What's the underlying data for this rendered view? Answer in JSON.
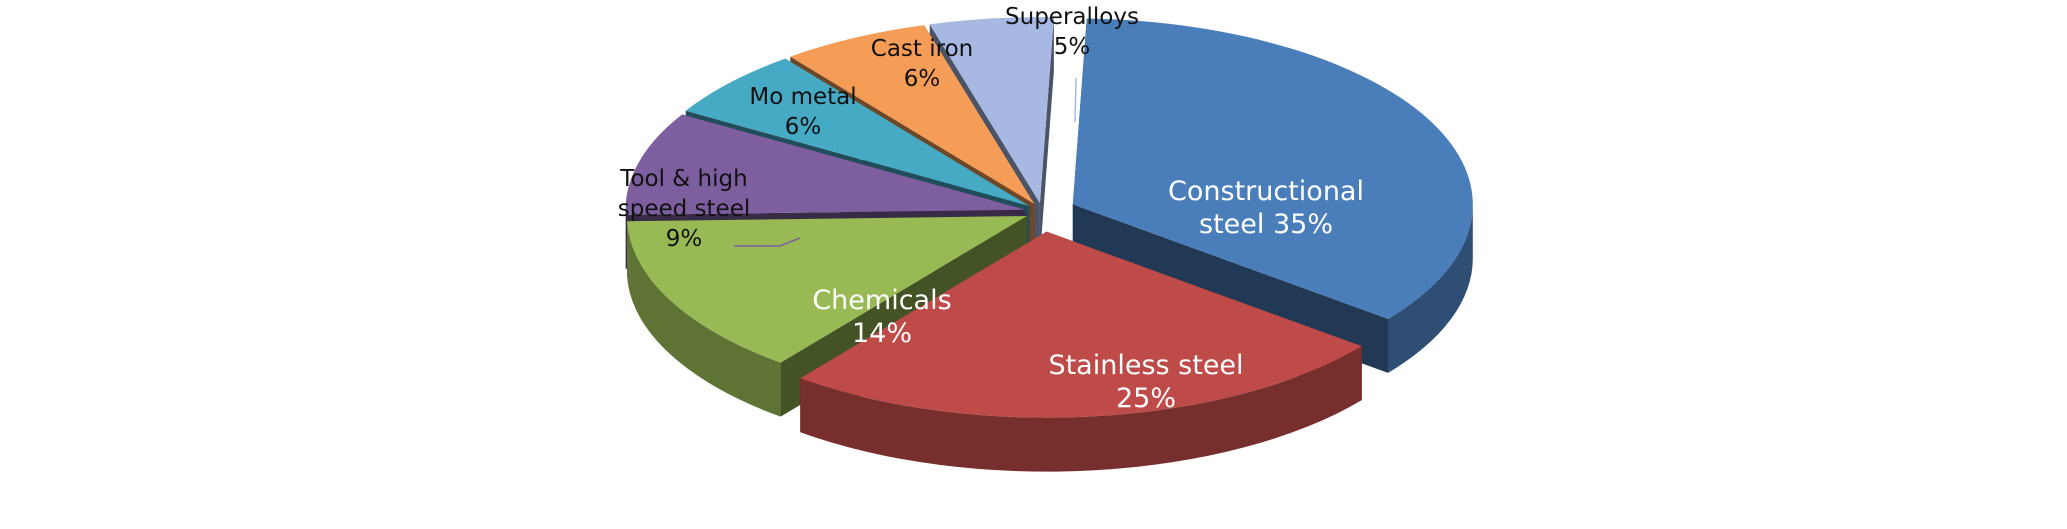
{
  "chart_data": {
    "type": "pie",
    "style": "3d-exploded",
    "legend": "none",
    "slices": [
      {
        "label": "Constructional steel",
        "value": 35,
        "value_label": "35%",
        "color": "#4A7EBB"
      },
      {
        "label": "Stainless steel",
        "value": 25,
        "value_label": "25%",
        "color": "#BE4B48"
      },
      {
        "label": "Chemicals",
        "value": 14,
        "value_label": "14%",
        "color": "#98B954"
      },
      {
        "label": "Tool & high speed steel",
        "value": 9,
        "value_label": "9%",
        "color": "#7D5FA0"
      },
      {
        "label": "Mo metal",
        "value": 6,
        "value_label": "6%",
        "color": "#46AAC5"
      },
      {
        "label": "Cast iron",
        "value": 6,
        "value_label": "6%",
        "color": "#F59D56"
      },
      {
        "label": "Superalloys",
        "value": 5,
        "value_label": "5%",
        "color": "#A7B9E3"
      }
    ]
  }
}
